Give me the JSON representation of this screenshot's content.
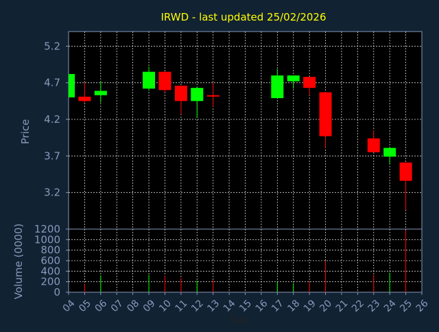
{
  "colors": {
    "background": "#112233",
    "plot_background": "#000000",
    "axis": "#8899bb",
    "grid": "#ffffff",
    "title": "#ffff00",
    "label": "#8899bb",
    "up": "#00ff00",
    "down": "#ff0000"
  },
  "chart_data": [
    {
      "type": "candlestick",
      "title": "IRWD - last updated 25/02/2026",
      "ylabel": "Price",
      "ylim": [
        2.7,
        5.4
      ],
      "yticks": [
        "5.2",
        "4.7",
        "4.2",
        "3.7",
        "3.2"
      ],
      "xlim": [
        4,
        26
      ],
      "grid": true,
      "candles": [
        {
          "day": 4,
          "open": 4.5,
          "high": 4.82,
          "low": 4.5,
          "close": 4.82
        },
        {
          "day": 5,
          "open": 4.51,
          "high": 4.71,
          "low": 4.43,
          "close": 4.45
        },
        {
          "day": 6,
          "open": 4.53,
          "high": 4.72,
          "low": 4.43,
          "close": 4.59
        },
        {
          "day": 9,
          "open": 4.62,
          "high": 4.92,
          "low": 4.59,
          "close": 4.85
        },
        {
          "day": 10,
          "open": 4.85,
          "high": 4.85,
          "low": 4.57,
          "close": 4.6
        },
        {
          "day": 11,
          "open": 4.66,
          "high": 4.66,
          "low": 4.27,
          "close": 4.45
        },
        {
          "day": 12,
          "open": 4.45,
          "high": 4.65,
          "low": 4.22,
          "close": 4.63
        },
        {
          "day": 13,
          "open": 4.53,
          "high": 4.7,
          "low": 4.37,
          "close": 4.52
        },
        {
          "day": 17,
          "open": 4.49,
          "high": 4.89,
          "low": 4.49,
          "close": 4.8
        },
        {
          "day": 18,
          "open": 4.72,
          "high": 4.8,
          "low": 4.62,
          "close": 4.8
        },
        {
          "day": 19,
          "open": 4.78,
          "high": 4.78,
          "low": 4.53,
          "close": 4.63
        },
        {
          "day": 20,
          "open": 4.57,
          "high": 4.57,
          "low": 3.81,
          "close": 3.97
        },
        {
          "day": 23,
          "open": 3.94,
          "high": 4.05,
          "low": 3.75,
          "close": 3.75
        },
        {
          "day": 24,
          "open": 3.69,
          "high": 3.82,
          "low": 3.59,
          "close": 3.81
        },
        {
          "day": 25,
          "open": 3.61,
          "high": 3.61,
          "low": 2.96,
          "close": 3.36
        }
      ]
    },
    {
      "type": "bar",
      "ylabel": "Volume (0000)",
      "xlabel": "Day",
      "ylim": [
        0,
        1200
      ],
      "yticks": [
        "1200",
        "1000",
        "800",
        "600",
        "400",
        "200",
        "0"
      ],
      "xticks": [
        "04",
        "05",
        "06",
        "07",
        "08",
        "09",
        "10",
        "11",
        "12",
        "13",
        "14",
        "15",
        "16",
        "17",
        "18",
        "19",
        "20",
        "21",
        "22",
        "23",
        "24",
        "25",
        "26"
      ],
      "xlim": [
        4,
        26
      ],
      "grid": true,
      "bars": [
        {
          "day": 4,
          "value": 0,
          "dir": "up"
        },
        {
          "day": 5,
          "value": 150,
          "dir": "down"
        },
        {
          "day": 6,
          "value": 320,
          "dir": "up"
        },
        {
          "day": 9,
          "value": 330,
          "dir": "up"
        },
        {
          "day": 10,
          "value": 310,
          "dir": "down"
        },
        {
          "day": 11,
          "value": 270,
          "dir": "down"
        },
        {
          "day": 12,
          "value": 220,
          "dir": "up"
        },
        {
          "day": 13,
          "value": 230,
          "dir": "down"
        },
        {
          "day": 17,
          "value": 200,
          "dir": "up"
        },
        {
          "day": 18,
          "value": 170,
          "dir": "up"
        },
        {
          "day": 19,
          "value": 200,
          "dir": "down"
        },
        {
          "day": 20,
          "value": 600,
          "dir": "down"
        },
        {
          "day": 23,
          "value": 330,
          "dir": "down"
        },
        {
          "day": 24,
          "value": 370,
          "dir": "up"
        },
        {
          "day": 25,
          "value": 1180,
          "dir": "down"
        }
      ]
    }
  ]
}
